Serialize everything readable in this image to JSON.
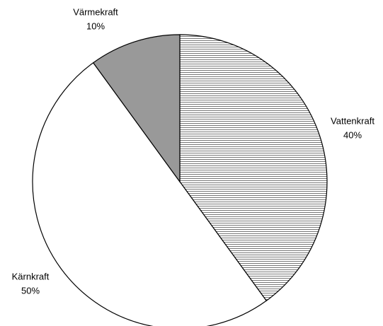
{
  "chart_data": {
    "type": "pie",
    "categories": [
      "Vattenkraft",
      "Kärnkraft",
      "Värmekraft"
    ],
    "values": [
      40,
      50,
      10
    ],
    "value_labels": [
      "40%",
      "50%",
      "10%"
    ],
    "colors": [
      "hatch",
      "#ffffff",
      "#999999"
    ]
  }
}
